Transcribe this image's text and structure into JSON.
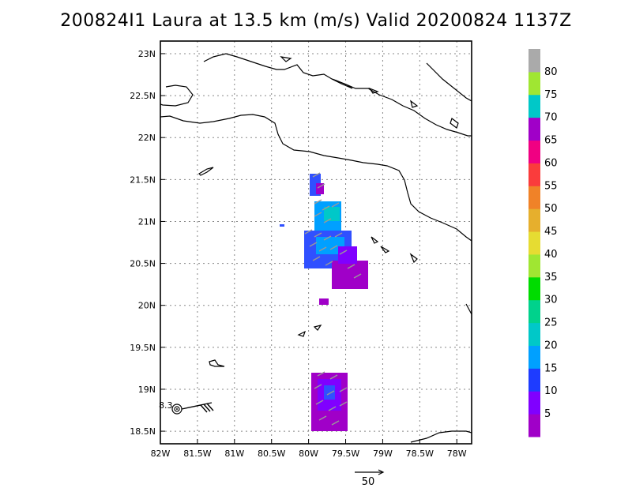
{
  "title": "200824I1 Laura at 13.5 km (m/s) Valid 20200824 1137Z",
  "map": {
    "lon_range": [
      -82.0,
      -77.8
    ],
    "lat_range": [
      18.35,
      23.15
    ],
    "lon_ticks": [
      {
        "value": -82.0,
        "label": "82W"
      },
      {
        "value": -81.5,
        "label": "81.5W"
      },
      {
        "value": -81.0,
        "label": "81W"
      },
      {
        "value": -80.5,
        "label": "80.5W"
      },
      {
        "value": -80.0,
        "label": "80W"
      },
      {
        "value": -79.5,
        "label": "79.5W"
      },
      {
        "value": -79.0,
        "label": "79W"
      },
      {
        "value": -78.5,
        "label": "78.5W"
      },
      {
        "value": -78.0,
        "label": "78W"
      }
    ],
    "lat_ticks": [
      {
        "value": 18.5,
        "label": "18.5N"
      },
      {
        "value": 19.0,
        "label": "19N"
      },
      {
        "value": 19.5,
        "label": "19.5N"
      },
      {
        "value": 20.0,
        "label": "20N"
      },
      {
        "value": 20.5,
        "label": "20.5N"
      },
      {
        "value": 21.0,
        "label": "21N"
      },
      {
        "value": 21.5,
        "label": "21.5N"
      },
      {
        "value": 22.0,
        "label": "22N"
      },
      {
        "value": 22.5,
        "label": "22.5N"
      },
      {
        "value": 23.0,
        "label": "23N"
      }
    ],
    "grid": "dotted",
    "storm_center": {
      "lon": -81.85,
      "lat": 18.82,
      "label": "8.3"
    }
  },
  "colorbar": {
    "labels": [
      "5",
      "10",
      "15",
      "20",
      "25",
      "30",
      "35",
      "40",
      "45",
      "50",
      "55",
      "60",
      "65",
      "70",
      "75",
      "80"
    ],
    "colors": [
      "#a000c8",
      "#8000ff",
      "#1e3cff",
      "#00a0ff",
      "#00c8c8",
      "#00d28c",
      "#00dc00",
      "#a0e632",
      "#e6dc32",
      "#e6af2d",
      "#f08228",
      "#fa3c3c",
      "#f00082",
      "#a000c8",
      "#00c8c8",
      "#a0e632",
      "#aaaaaa"
    ]
  },
  "reference_vector": {
    "label": "50"
  }
}
